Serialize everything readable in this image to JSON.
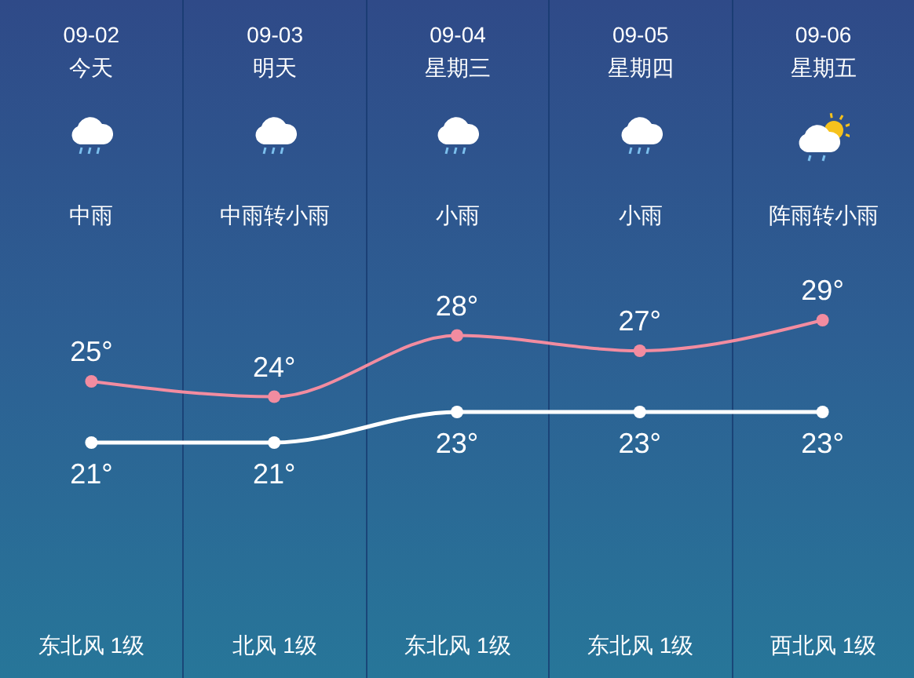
{
  "chart_data": {
    "type": "line",
    "categories": [
      "09-02",
      "09-03",
      "09-04",
      "09-05",
      "09-06"
    ],
    "series": [
      {
        "color": "#f28ca0",
        "values": [
          25,
          24,
          28,
          27,
          29
        ],
        "value_labels": [
          "25°",
          "24°",
          "28°",
          "27°",
          "29°"
        ]
      },
      {
        "color": "#ffffff",
        "values": [
          21,
          21,
          23,
          23,
          23
        ],
        "value_labels": [
          "21°",
          "21°",
          "23°",
          "23°",
          "23°"
        ]
      }
    ],
    "marker": "circle",
    "tick_labels": "x",
    "annotations": [
      "今天",
      "明天",
      "星期三",
      "星期四",
      "星期五",
      "中雨",
      "中雨转小雨",
      "小雨",
      "小雨",
      "阵雨转小雨",
      "东北风 1级",
      "北风 1级",
      "东北风 1级",
      "东北风 1级",
      "西北风 1级"
    ]
  }
}
